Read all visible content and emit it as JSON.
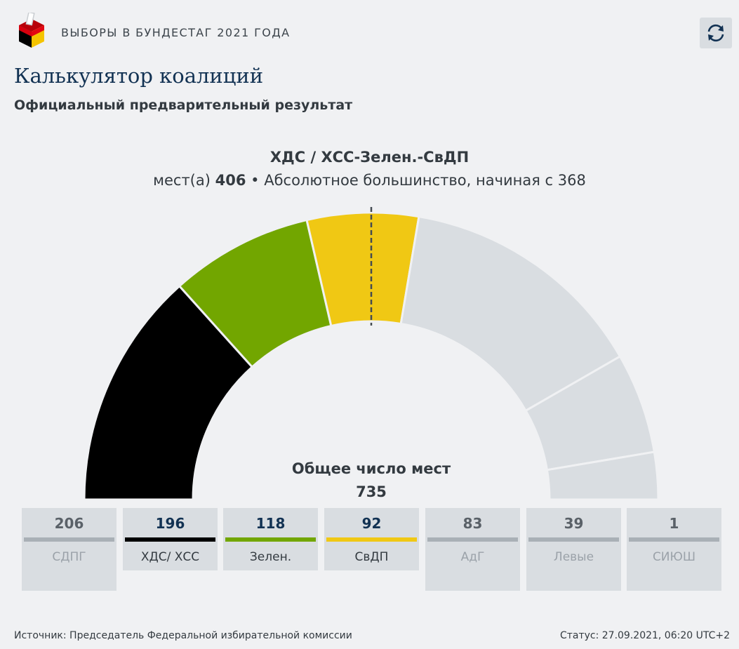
{
  "header": {
    "kicker": "ВЫБОРЫ В БУНДЕСТАГ 2021 ГОДА",
    "logo_icon": "ballot-box-icon",
    "refresh_icon": "refresh-icon"
  },
  "title": "Калькулятор коалиций",
  "subtitle": "Официальный предварительный результат",
  "coalition": {
    "name": "ХДС / ХСС-Зелен.-СвДП",
    "seats_prefix": "мест(а)",
    "seats": "406",
    "majority_text": "• Абсолютное большинство, начиная с 368"
  },
  "total": {
    "label": "Общее число мест",
    "value": "735"
  },
  "chart_data": {
    "type": "semicircle-parliament",
    "total_seats": 735,
    "majority": 368,
    "parties": [
      {
        "name": "СДПГ",
        "seats": 206,
        "color": "#a9b0b6",
        "selected": false
      },
      {
        "name": "ХДС/ ХСС",
        "seats": 196,
        "color": "#000000",
        "selected": true
      },
      {
        "name": "Зелен.",
        "seats": 118,
        "color": "#72a600",
        "selected": true
      },
      {
        "name": "СвДП",
        "seats": 92,
        "color": "#f0c814",
        "selected": true
      },
      {
        "name": "АдГ",
        "seats": 83,
        "color": "#a9b0b6",
        "selected": false
      },
      {
        "name": "Левые",
        "seats": 39,
        "color": "#a9b0b6",
        "selected": false
      },
      {
        "name": "СИЮШ",
        "seats": 1,
        "color": "#a9b0b6",
        "selected": false
      }
    ],
    "arc_order": [
      "ХДС/ ХСС",
      "Зелен.",
      "СвДП",
      "СДПГ",
      "АдГ",
      "Левые"
    ]
  },
  "footer": {
    "source": "Источник: Председатель Федеральной избирательной комиссии",
    "status": "Статус: 27.09.2021, 06:20 UTC+2"
  }
}
